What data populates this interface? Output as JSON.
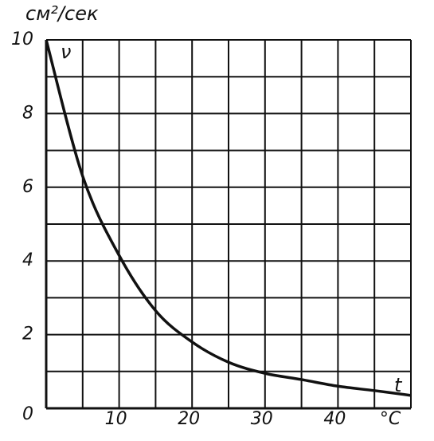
{
  "chart_data": {
    "type": "line",
    "y_label": "см²/сек",
    "series_label": "ν",
    "x_label": "t",
    "x_unit": "°C",
    "x": [
      0,
      5,
      10,
      15,
      20,
      25,
      30,
      35,
      40,
      45,
      50
    ],
    "series": [
      {
        "name": "ν",
        "color": "#111111",
        "values": [
          10,
          6.3,
          4.15,
          2.65,
          1.8,
          1.25,
          0.95,
          0.78,
          0.6,
          0.48,
          0.35
        ]
      }
    ],
    "xlim": [
      0,
      50
    ],
    "ylim": [
      0,
      10
    ],
    "xticks": [
      10,
      20,
      30,
      40
    ],
    "yticks": [
      0,
      2,
      4,
      6,
      8,
      10
    ],
    "grid": true
  }
}
